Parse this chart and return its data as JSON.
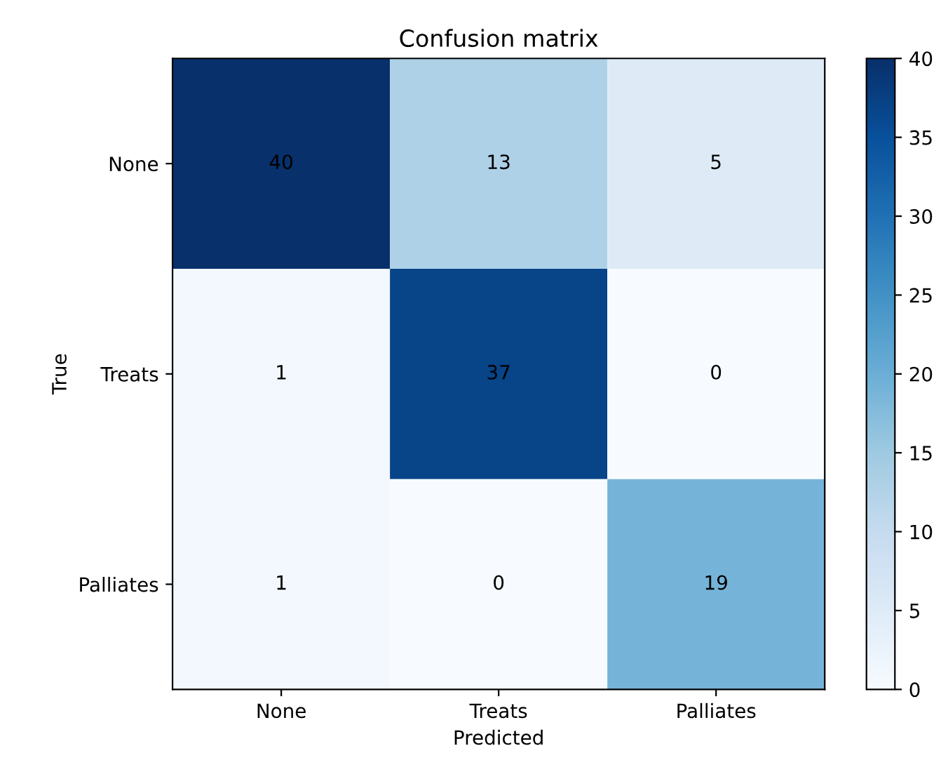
{
  "chart_data": {
    "type": "heatmap",
    "title": "Confusion matrix",
    "xlabel": "Predicted",
    "ylabel": "True",
    "categories": [
      "None",
      "Treats",
      "Palliates"
    ],
    "y_categories": [
      "None",
      "Treats",
      "Palliates"
    ],
    "cells": [
      [
        40,
        13,
        5
      ],
      [
        1,
        37,
        0
      ],
      [
        1,
        0,
        19
      ]
    ],
    "data_labels": true,
    "clim": [
      0,
      40
    ],
    "cticks": [
      0,
      5,
      10,
      15,
      20,
      25,
      30,
      35,
      40
    ],
    "grid": false
  }
}
